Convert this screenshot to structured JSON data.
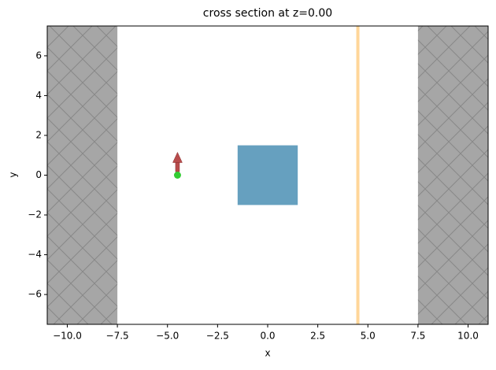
{
  "chart_data": {
    "type": "structure",
    "title": "cross section at z=0.00",
    "x_label": "x",
    "y_label": "y",
    "xlim": [
      -11,
      11
    ],
    "ylim": [
      -7.5,
      7.5
    ],
    "xticks": [
      {
        "value": -10,
        "label": "−10.0"
      },
      {
        "value": -7.5,
        "label": "−7.5"
      },
      {
        "value": -5,
        "label": "−5.0"
      },
      {
        "value": -2.5,
        "label": "−2.5"
      },
      {
        "value": 0,
        "label": "0.0"
      },
      2.5,
      {
        "value": 5,
        "label": "5.0"
      },
      7.5,
      {
        "value": 10,
        "label": "10.0"
      }
    ],
    "yticks": [
      {
        "value": -6,
        "label": "−6"
      },
      {
        "value": -4,
        "label": "−4"
      },
      {
        "value": -2,
        "label": "−2"
      },
      0,
      2,
      4,
      6
    ],
    "pml": {
      "color": "#a6a6a6",
      "regions": [
        [
          -11,
          -7.5
        ],
        [
          7.5,
          11
        ]
      ]
    },
    "box": {
      "color": "#66a0bf",
      "x": [
        -1.5,
        1.5
      ],
      "y": [
        -1.5,
        1.5
      ]
    },
    "monitor": {
      "color": "#ffd699",
      "x": 4.5
    },
    "source": {
      "color": "#33cc33",
      "arrow_color": "#b84c4c",
      "x": -4.5,
      "y": 0,
      "arrow_length": 1.15
    }
  }
}
